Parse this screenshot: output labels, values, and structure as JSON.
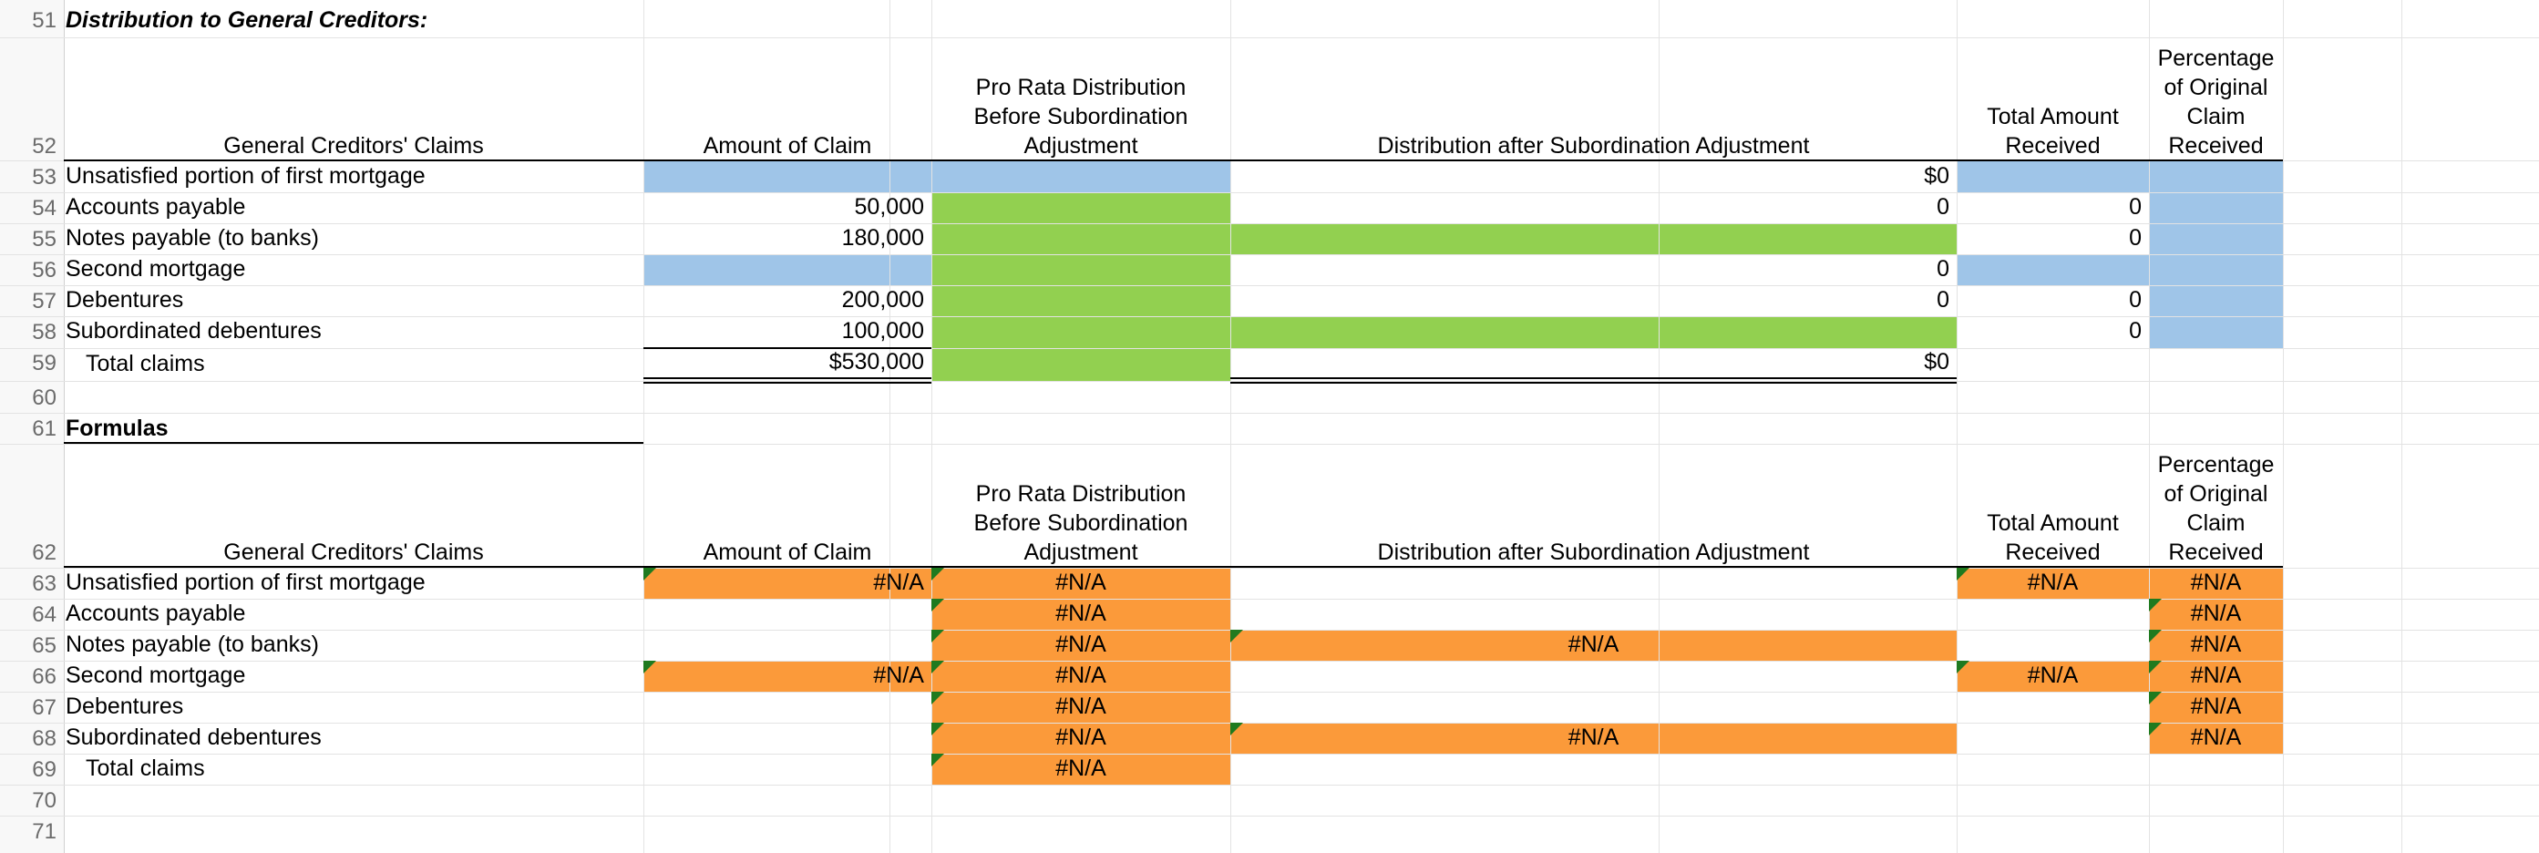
{
  "section1": {
    "title": "Distribution to General Creditors:",
    "headers": {
      "claims": "General Creditors' Claims",
      "amount": "Amount of Claim",
      "pro_rata": [
        "Pro Rata Distribution",
        "Before Subordination",
        "Adjustment"
      ],
      "after": "Distribution after Subordination Adjustment",
      "total_received": [
        "Total Amount",
        "Received"
      ],
      "percentage": [
        "Percentage",
        "of Original",
        "Claim",
        "Received"
      ]
    },
    "rows": [
      {
        "label": "Unsatisfied portion of first mortgage",
        "amount": "",
        "after": "$0",
        "total": ""
      },
      {
        "label": "Accounts payable",
        "amount": "50,000",
        "after": "0",
        "total": "0"
      },
      {
        "label": "Notes payable (to banks)",
        "amount": "180,000",
        "after": "",
        "total": "0"
      },
      {
        "label": "Second mortgage",
        "amount": "",
        "after": "0",
        "total": ""
      },
      {
        "label": "Debentures",
        "amount": "200,000",
        "after": "0",
        "total": "0"
      },
      {
        "label": "Subordinated debentures",
        "amount": "100,000",
        "after": "",
        "total": "0"
      }
    ],
    "total_label": "Total claims",
    "total_amount": "$530,000",
    "total_after": "$0"
  },
  "section2": {
    "title": "Formulas",
    "headers": {
      "claims": "General Creditors' Claims",
      "amount": "Amount of Claim",
      "pro_rata": [
        "Pro Rata Distribution",
        "Before Subordination",
        "Adjustment"
      ],
      "after": "Distribution after Subordination Adjustment",
      "total_received": [
        "Total Amount",
        "Received"
      ],
      "percentage": [
        "Percentage",
        "of Original",
        "Claim",
        "Received"
      ]
    },
    "rows": [
      {
        "label": "Unsatisfied portion of first mortgage",
        "amount": "#N/A",
        "pro_rata": "#N/A",
        "after": "",
        "total": "#N/A",
        "pct": "#N/A"
      },
      {
        "label": "Accounts payable",
        "amount": "",
        "pro_rata": "#N/A",
        "after": "",
        "total": "",
        "pct": "#N/A"
      },
      {
        "label": "Notes payable (to banks)",
        "amount": "",
        "pro_rata": "#N/A",
        "after": "#N/A",
        "total": "",
        "pct": "#N/A"
      },
      {
        "label": "Second mortgage",
        "amount": "#N/A",
        "pro_rata": "#N/A",
        "after": "",
        "total": "#N/A",
        "pct": "#N/A"
      },
      {
        "label": "Debentures",
        "amount": "",
        "pro_rata": "#N/A",
        "after": "",
        "total": "",
        "pct": "#N/A"
      },
      {
        "label": "Subordinated debentures",
        "amount": "",
        "pro_rata": "#N/A",
        "after": "#N/A",
        "total": "",
        "pct": "#N/A"
      }
    ],
    "total_label": "Total claims",
    "total_pro_rata": "#N/A"
  },
  "row_numbers": [
    "51",
    "52",
    "53",
    "54",
    "55",
    "56",
    "57",
    "58",
    "59",
    "60",
    "61",
    "62",
    "63",
    "64",
    "65",
    "66",
    "67",
    "68",
    "69",
    "70",
    "71"
  ],
  "colors": {
    "blue": "#9fc5e8",
    "green": "#92d050",
    "orange": "#fb9a3a",
    "grid": "#e3e3e3"
  }
}
